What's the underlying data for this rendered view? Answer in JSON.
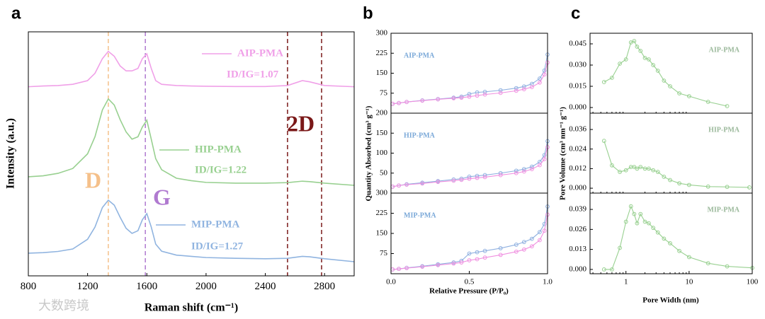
{
  "chart_data": [
    {
      "type": "line",
      "panel_label": "a",
      "xlabel": "Raman shift (cm⁻¹)",
      "ylabel": "Intensity (a.u.)",
      "xlim": [
        800,
        3000
      ],
      "xticks": [
        800,
        1200,
        1600,
        2000,
        2400,
        2800
      ],
      "ylim": [
        0,
        10
      ],
      "x": [
        800,
        900,
        1000,
        1100,
        1200,
        1250,
        1300,
        1340,
        1380,
        1420,
        1460,
        1500,
        1540,
        1570,
        1600,
        1630,
        1660,
        1700,
        1800,
        1900,
        2000,
        2200,
        2400,
        2550,
        2650,
        2700,
        2800,
        3000
      ],
      "series": [
        {
          "name": "AIP-PMA",
          "label": "ID/IG=1.07",
          "color": "#f0a0e8",
          "values": [
            7.75,
            7.78,
            7.8,
            7.85,
            8.0,
            8.3,
            8.9,
            9.2,
            9.0,
            8.6,
            8.4,
            8.4,
            8.5,
            8.9,
            9.1,
            8.5,
            8.0,
            7.85,
            7.8,
            7.78,
            7.77,
            7.76,
            7.76,
            7.8,
            8.0,
            7.95,
            7.8,
            7.75
          ]
        },
        {
          "name": "HIP-PMA",
          "label": "ID/IG=1.22",
          "color": "#98d090",
          "values": [
            4.06,
            4.1,
            4.2,
            4.4,
            5.0,
            5.7,
            6.8,
            7.25,
            7.0,
            6.4,
            5.9,
            5.6,
            5.7,
            6.1,
            6.38,
            5.6,
            4.8,
            4.35,
            4.0,
            3.9,
            3.83,
            3.8,
            3.8,
            3.82,
            3.88,
            3.86,
            3.8,
            3.71
          ]
        },
        {
          "name": "MIP-PMA",
          "label": "ID/IG=1.27",
          "color": "#90b4e0",
          "values": [
            0.93,
            0.95,
            1.0,
            1.1,
            1.5,
            2.0,
            2.8,
            3.1,
            2.9,
            2.4,
            1.95,
            1.74,
            1.85,
            2.3,
            2.55,
            2.0,
            1.3,
            1.01,
            0.85,
            0.8,
            0.75,
            0.72,
            0.7,
            0.72,
            0.8,
            0.78,
            0.7,
            0.58
          ]
        }
      ],
      "vlines": [
        {
          "x": 1340,
          "color": "#f5c08a"
        },
        {
          "x": 1590,
          "color": "#b07ad0"
        },
        {
          "x": 2550,
          "color": "#7a1818"
        },
        {
          "x": 2780,
          "color": "#7a1818"
        }
      ],
      "annotations": [
        {
          "text": "D",
          "color": "#f5c08a"
        },
        {
          "text": "G",
          "color": "#b07ad0"
        },
        {
          "text": "2D",
          "color": "#7a1818"
        }
      ],
      "watermark": "大数跨境"
    },
    {
      "type": "line",
      "panel_label": "b",
      "title": "AIP-PMA",
      "title_color": "#7aa8d8",
      "markers": true,
      "xlim": [
        0,
        1
      ],
      "ylim": [
        0,
        300
      ],
      "yticks": [
        75,
        150,
        225,
        300
      ],
      "x": [
        0.01,
        0.05,
        0.1,
        0.2,
        0.3,
        0.4,
        0.45,
        0.5,
        0.55,
        0.6,
        0.7,
        0.8,
        0.85,
        0.9,
        0.95,
        0.98,
        1.0
      ],
      "series": [
        {
          "color": "#8fb0e0",
          "values": [
            35,
            38,
            42,
            48,
            53,
            58,
            62,
            72,
            78,
            80,
            86,
            94,
            100,
            110,
            130,
            160,
            220
          ]
        },
        {
          "color": "#f090e0",
          "values": [
            35,
            38,
            42,
            47,
            52,
            56,
            58,
            62,
            66,
            70,
            76,
            84,
            90,
            98,
            115,
            145,
            190
          ]
        }
      ]
    },
    {
      "type": "line",
      "title": "HIP-PMA",
      "title_color": "#7aa8d8",
      "markers": true,
      "ylabel": "Quantity Absorbed (cm³ g⁻¹)",
      "xlim": [
        0,
        1
      ],
      "ylim": [
        0,
        200
      ],
      "yticks": [
        50,
        100,
        150,
        200
      ],
      "x": [
        0.01,
        0.05,
        0.1,
        0.2,
        0.3,
        0.4,
        0.45,
        0.5,
        0.55,
        0.6,
        0.7,
        0.8,
        0.85,
        0.9,
        0.95,
        0.98,
        1.0
      ],
      "series": [
        {
          "color": "#8fb0e0",
          "values": [
            16,
            19,
            22,
            26,
            30,
            34,
            36,
            41,
            43,
            45,
            50,
            56,
            60,
            66,
            78,
            95,
            130
          ]
        },
        {
          "color": "#f090e0",
          "values": [
            16,
            19,
            21,
            24,
            28,
            31,
            33,
            36,
            38,
            40,
            45,
            50,
            54,
            60,
            70,
            85,
            115
          ]
        }
      ]
    },
    {
      "type": "line",
      "title": "MIP-PMA",
      "title_color": "#7aa8d8",
      "markers": true,
      "xlabel": "Relative Pressure (P/P₀)",
      "xlim": [
        0,
        1
      ],
      "xticks": [
        {
          "value": 0,
          "label": "0.0"
        },
        0.5,
        {
          "value": 1,
          "label": "1.0"
        }
      ],
      "ylim": [
        0,
        300
      ],
      "yticks": [
        75,
        150,
        225,
        300
      ],
      "x": [
        0.01,
        0.05,
        0.1,
        0.2,
        0.3,
        0.4,
        0.45,
        0.5,
        0.55,
        0.6,
        0.7,
        0.8,
        0.85,
        0.9,
        0.95,
        0.98,
        1.0
      ],
      "series": [
        {
          "color": "#8fb0e0",
          "values": [
            16,
            18,
            22,
            28,
            35,
            42,
            48,
            75,
            80,
            85,
            95,
            108,
            118,
            130,
            155,
            185,
            250
          ]
        },
        {
          "color": "#f090e0",
          "values": [
            16,
            18,
            21,
            26,
            32,
            38,
            42,
            50,
            54,
            60,
            70,
            82,
            90,
            102,
            125,
            160,
            220
          ]
        }
      ]
    },
    {
      "type": "line",
      "panel_label": "c",
      "title": "AIP-PMA",
      "title_color": "#9ab89a",
      "markers": true,
      "xscale": "log",
      "xlim": [
        0.27,
        100
      ],
      "ylim": [
        -0.004,
        0.0525
      ],
      "yticks": [
        {
          "value": 0,
          "label": "0.000"
        },
        0.015,
        {
          "value": 0.03,
          "label": "0.030"
        },
        0.045
      ],
      "x": [
        0.45,
        0.6,
        0.8,
        1.0,
        1.2,
        1.35,
        1.5,
        1.7,
        2.0,
        2.3,
        2.7,
        3.2,
        4,
        5,
        7,
        10,
        20,
        40
      ],
      "series": [
        {
          "color": "#98d090",
          "values": [
            0.018,
            0.021,
            0.031,
            0.034,
            0.046,
            0.047,
            0.043,
            0.04,
            0.035,
            0.034,
            0.03,
            0.026,
            0.019,
            0.015,
            0.01,
            0.008,
            0.004,
            0.001
          ]
        }
      ]
    },
    {
      "type": "line",
      "title": "HIP-PMA",
      "title_color": "#9ab89a",
      "markers": true,
      "xscale": "log",
      "ylabel": "Pore Volume (cm³ nm⁻¹ g⁻¹)",
      "xlim": [
        0.27,
        100
      ],
      "ylim": [
        -0.003,
        0.046
      ],
      "yticks": [
        {
          "value": 0,
          "label": "0.000"
        },
        0.012,
        0.024,
        0.036
      ],
      "x": [
        0.45,
        0.6,
        0.8,
        1.0,
        1.2,
        1.35,
        1.5,
        1.7,
        2.0,
        2.3,
        2.7,
        3.2,
        4,
        5,
        7,
        10,
        20,
        40,
        90
      ],
      "series": [
        {
          "color": "#98d090",
          "values": [
            0.029,
            0.014,
            0.01,
            0.011,
            0.013,
            0.013,
            0.012,
            0.013,
            0.012,
            0.012,
            0.011,
            0.01,
            0.007,
            0.005,
            0.003,
            0.002,
            0.001,
            0.0008,
            0.0005
          ]
        }
      ]
    },
    {
      "type": "line",
      "title": "MIP-PMA",
      "title_color": "#9ab89a",
      "markers": true,
      "xscale": "log",
      "xlabel": "Pore Width (nm)",
      "xlim": [
        0.27,
        100
      ],
      "xticks": [
        1,
        10,
        100
      ],
      "ylim": [
        -0.0028,
        0.0496
      ],
      "yticks": [
        {
          "value": 0,
          "label": "0.000"
        },
        0.013,
        0.026,
        0.039
      ],
      "x": [
        0.45,
        0.6,
        0.8,
        1.0,
        1.2,
        1.35,
        1.5,
        1.7,
        2.0,
        2.3,
        2.7,
        3.2,
        4,
        5,
        7,
        10,
        20,
        40,
        100
      ],
      "series": [
        {
          "color": "#98d090",
          "values": [
            0,
            0,
            0.014,
            0.031,
            0.041,
            0.036,
            0.03,
            0.036,
            0.031,
            0.03,
            0.027,
            0.024,
            0.02,
            0.017,
            0.012,
            0.008,
            0.004,
            0.002,
            0.001
          ]
        }
      ]
    }
  ]
}
